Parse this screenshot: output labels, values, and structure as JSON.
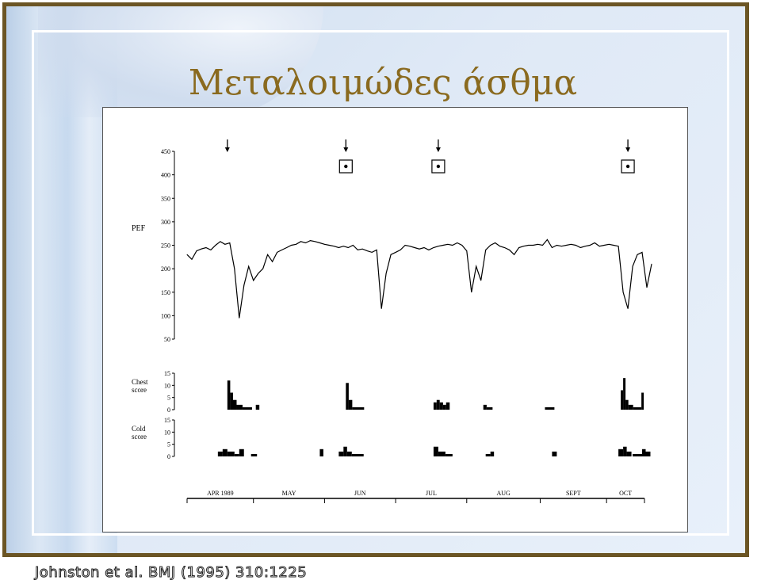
{
  "slide": {
    "title": "Μεταλοιμώδες άσθμα",
    "citation": "Johnston et al. BMJ (1995) 310:1225",
    "frame_color": "#6b5524",
    "title_color": "#8a6a1f"
  },
  "chart_data": [
    {
      "type": "line",
      "ylabel": "PEF",
      "ylim": [
        50,
        450
      ],
      "yticks": [
        50,
        100,
        150,
        200,
        250,
        300,
        350,
        400,
        450
      ],
      "x_unit": "day index (Apr 1989 – Oct 1989)",
      "x": [
        0,
        2,
        4,
        6,
        8,
        10,
        12,
        14,
        16,
        18,
        20,
        22,
        24,
        26,
        28,
        30,
        32,
        34,
        36,
        38,
        40,
        42,
        44,
        46,
        48,
        50,
        52,
        54,
        56,
        58,
        60,
        62,
        64,
        66,
        68,
        70,
        72,
        74,
        76,
        78,
        80,
        82,
        84,
        86,
        88,
        90,
        92,
        94,
        96,
        98,
        100,
        102,
        104,
        106,
        108,
        110,
        112,
        114,
        116,
        118,
        120,
        122,
        124,
        126,
        128,
        130,
        132,
        134,
        136,
        138,
        140,
        142,
        144,
        146,
        148,
        150,
        152,
        154,
        156,
        158,
        160,
        162,
        164,
        166,
        168,
        170,
        172,
        174,
        176,
        178,
        180,
        182,
        184,
        186,
        188,
        190,
        192,
        194,
        196
      ],
      "y": [
        230,
        220,
        238,
        242,
        245,
        240,
        250,
        258,
        252,
        255,
        200,
        95,
        165,
        205,
        175,
        190,
        200,
        230,
        215,
        235,
        240,
        245,
        250,
        252,
        258,
        255,
        260,
        258,
        255,
        252,
        250,
        248,
        245,
        248,
        245,
        250,
        240,
        242,
        238,
        235,
        240,
        115,
        190,
        230,
        235,
        240,
        250,
        248,
        245,
        242,
        245,
        240,
        245,
        248,
        250,
        252,
        250,
        255,
        250,
        238,
        150,
        205,
        175,
        240,
        250,
        255,
        248,
        245,
        240,
        230,
        245,
        248,
        250,
        250,
        252,
        250,
        262,
        245,
        250,
        248,
        250,
        252,
        250,
        245,
        248,
        250,
        255,
        248,
        250,
        252,
        250,
        248,
        150,
        115,
        205,
        230,
        235,
        160,
        210
      ],
      "events_arrow_x": [
        17,
        67,
        106,
        186
      ],
      "events_boxed_x": [
        67,
        106,
        186
      ],
      "box_y": 410,
      "arrow_y": 450
    },
    {
      "type": "bar",
      "ylabel": "Chest score",
      "ylim": [
        0,
        15
      ],
      "yticks": [
        0,
        5,
        10,
        15
      ],
      "bars": [
        {
          "x": 17,
          "w": 1.2,
          "v": 12
        },
        {
          "x": 18.2,
          "w": 1.2,
          "v": 7
        },
        {
          "x": 19.4,
          "w": 1.5,
          "v": 4
        },
        {
          "x": 20.9,
          "w": 2.5,
          "v": 2
        },
        {
          "x": 23.4,
          "w": 4,
          "v": 1
        },
        {
          "x": 29,
          "w": 1.5,
          "v": 2
        },
        {
          "x": 67,
          "w": 1.2,
          "v": 11
        },
        {
          "x": 68.2,
          "w": 1.5,
          "v": 4
        },
        {
          "x": 69.7,
          "w": 5,
          "v": 1
        },
        {
          "x": 104,
          "w": 1.3,
          "v": 3
        },
        {
          "x": 105.3,
          "w": 1.3,
          "v": 4
        },
        {
          "x": 106.6,
          "w": 1.4,
          "v": 3
        },
        {
          "x": 108,
          "w": 1.3,
          "v": 2
        },
        {
          "x": 109.3,
          "w": 1.5,
          "v": 3
        },
        {
          "x": 125,
          "w": 1.4,
          "v": 2
        },
        {
          "x": 126.4,
          "w": 2.5,
          "v": 1
        },
        {
          "x": 151,
          "w": 4,
          "v": 1
        },
        {
          "x": 183,
          "w": 1,
          "v": 8
        },
        {
          "x": 184,
          "w": 1,
          "v": 13
        },
        {
          "x": 185,
          "w": 1.2,
          "v": 4
        },
        {
          "x": 186.2,
          "w": 2,
          "v": 2
        },
        {
          "x": 188.2,
          "w": 3.5,
          "v": 1
        },
        {
          "x": 191.7,
          "w": 1,
          "v": 7
        }
      ]
    },
    {
      "type": "bar",
      "ylabel": "Cold score",
      "ylim": [
        0,
        15
      ],
      "yticks": [
        0,
        5,
        10,
        15
      ],
      "bars": [
        {
          "x": 13,
          "w": 2,
          "v": 2
        },
        {
          "x": 15,
          "w": 2,
          "v": 3
        },
        {
          "x": 17,
          "w": 3,
          "v": 2
        },
        {
          "x": 20,
          "w": 2,
          "v": 1
        },
        {
          "x": 22,
          "w": 2,
          "v": 3
        },
        {
          "x": 27,
          "w": 2.5,
          "v": 1
        },
        {
          "x": 56,
          "w": 1.5,
          "v": 3
        },
        {
          "x": 64,
          "w": 2,
          "v": 2
        },
        {
          "x": 66,
          "w": 1.5,
          "v": 4
        },
        {
          "x": 67.5,
          "w": 2,
          "v": 2
        },
        {
          "x": 69.5,
          "w": 5,
          "v": 1
        },
        {
          "x": 104,
          "w": 2,
          "v": 4
        },
        {
          "x": 106,
          "w": 3,
          "v": 2
        },
        {
          "x": 109,
          "w": 3,
          "v": 1
        },
        {
          "x": 126,
          "w": 2,
          "v": 1
        },
        {
          "x": 128,
          "w": 1.5,
          "v": 2
        },
        {
          "x": 154,
          "w": 2,
          "v": 2
        },
        {
          "x": 182,
          "w": 2,
          "v": 3
        },
        {
          "x": 184,
          "w": 1.5,
          "v": 4
        },
        {
          "x": 185.5,
          "w": 2,
          "v": 2
        },
        {
          "x": 188,
          "w": 2,
          "v": 1
        },
        {
          "x": 190,
          "w": 2,
          "v": 1
        },
        {
          "x": 192,
          "w": 1.5,
          "v": 3
        },
        {
          "x": 193.5,
          "w": 2,
          "v": 2
        }
      ]
    }
  ],
  "months": [
    {
      "label": "APR 1989",
      "start": 0,
      "end": 28
    },
    {
      "label": "MAY",
      "start": 28,
      "end": 58
    },
    {
      "label": "JUN",
      "start": 58,
      "end": 88
    },
    {
      "label": "JUL",
      "start": 88,
      "end": 118
    },
    {
      "label": "AUG",
      "start": 118,
      "end": 149
    },
    {
      "label": "SEPT",
      "start": 149,
      "end": 177
    },
    {
      "label": "OCT",
      "start": 177,
      "end": 193
    }
  ]
}
